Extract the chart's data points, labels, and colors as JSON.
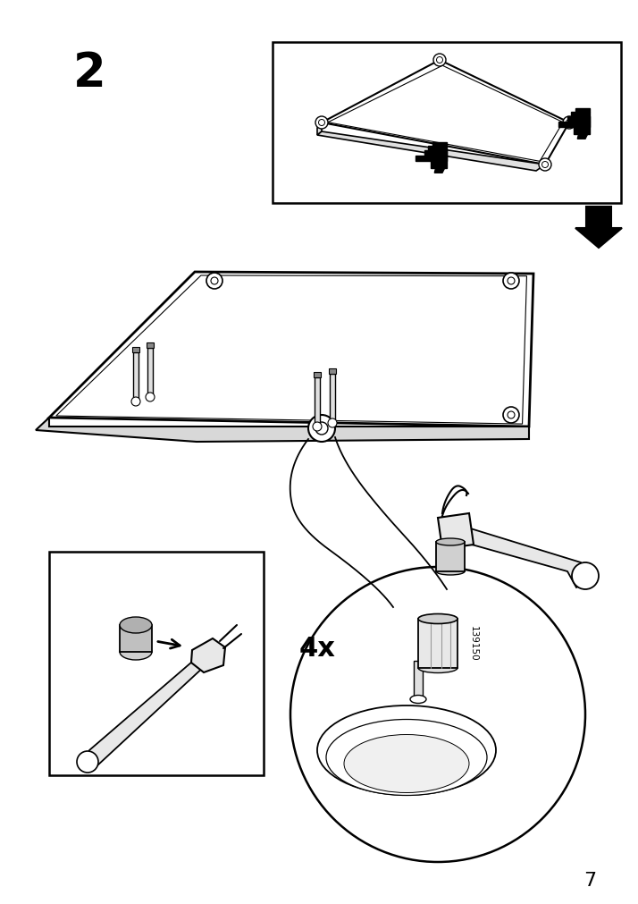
{
  "bg_color": "#ffffff",
  "page_number": "7",
  "step_number": "2",
  "part_number": "139150",
  "quantity_text": "4x",
  "fig_w": 7.14,
  "fig_h": 10.12,
  "dpi": 100
}
